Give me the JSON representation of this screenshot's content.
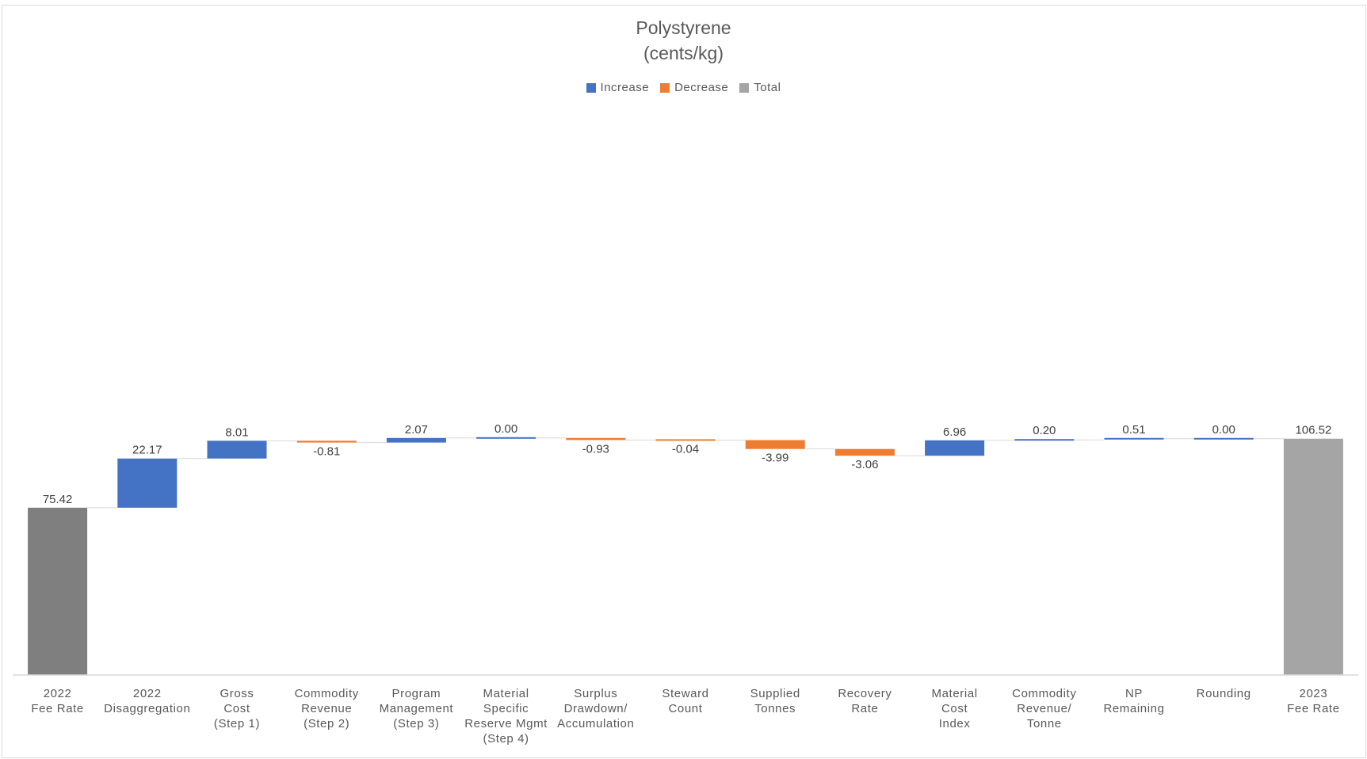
{
  "chart_data": {
    "type": "waterfall",
    "title": [
      "Polystyrene",
      "(cents/kg)"
    ],
    "legend": {
      "placement": "top",
      "items": [
        {
          "label": "Increase",
          "color": "#4472C4"
        },
        {
          "label": "Decrease",
          "color": "#ED7D31"
        },
        {
          "label": "Total",
          "color": "#A5A5A5"
        }
      ]
    },
    "colors": {
      "increase": "#4472C4",
      "decrease": "#ED7D31",
      "total": "#A5A5A5",
      "start_total": "#7F7F7F",
      "connector": "#D9D9D9",
      "axis": "#D9D9D9"
    },
    "ylim": [
      0,
      290
    ],
    "grid": false,
    "categories": [
      {
        "lines": [
          "2022",
          "Fee Rate"
        ],
        "value": 75.42,
        "label": "75.42",
        "kind": "start"
      },
      {
        "lines": [
          "2022",
          "Disaggregation"
        ],
        "value": 22.17,
        "label": "22.17",
        "kind": "delta"
      },
      {
        "lines": [
          "Gross",
          "Cost",
          "(Step 1)"
        ],
        "value": 8.01,
        "label": "8.01",
        "kind": "delta"
      },
      {
        "lines": [
          "Commodity",
          "Revenue",
          "(Step 2)"
        ],
        "value": -0.81,
        "label": "-0.81",
        "kind": "delta"
      },
      {
        "lines": [
          "Program",
          "Management",
          "(Step 3)"
        ],
        "value": 2.07,
        "label": "2.07",
        "kind": "delta"
      },
      {
        "lines": [
          "Material",
          "Specific",
          "Reserve Mgmt",
          "(Step 4)"
        ],
        "value": 0.0,
        "label": "0.00",
        "kind": "delta"
      },
      {
        "lines": [
          "Surplus",
          "Drawdown/",
          "Accumulation"
        ],
        "value": -0.93,
        "label": "-0.93",
        "kind": "delta"
      },
      {
        "lines": [
          "Steward",
          "Count"
        ],
        "value": -0.04,
        "label": "-0.04",
        "kind": "delta"
      },
      {
        "lines": [
          "Supplied",
          "Tonnes"
        ],
        "value": -3.99,
        "label": "-3.99",
        "kind": "delta"
      },
      {
        "lines": [
          "Recovery",
          "Rate"
        ],
        "value": -3.06,
        "label": "-3.06",
        "kind": "delta"
      },
      {
        "lines": [
          "Material",
          "Cost",
          "Index"
        ],
        "value": 6.96,
        "label": "6.96",
        "kind": "delta"
      },
      {
        "lines": [
          "Commodity",
          "Revenue/",
          "Tonne"
        ],
        "value": 0.2,
        "label": "0.20",
        "kind": "delta"
      },
      {
        "lines": [
          "NP",
          "Remaining"
        ],
        "value": 0.51,
        "label": "0.51",
        "kind": "delta"
      },
      {
        "lines": [
          "Rounding"
        ],
        "value": 0.0,
        "label": "0.00",
        "kind": "delta"
      },
      {
        "lines": [
          "2023",
          "Fee Rate"
        ],
        "value": 106.52,
        "label": "106.52",
        "kind": "total"
      }
    ]
  }
}
